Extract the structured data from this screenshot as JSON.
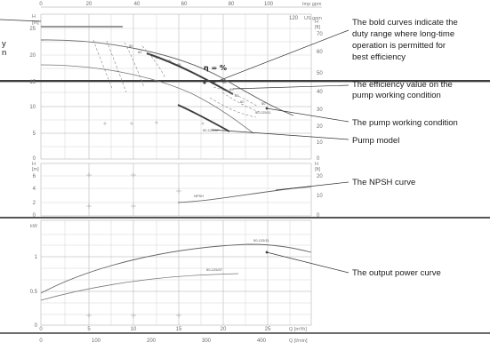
{
  "top_axis": {
    "ticks": [
      "0",
      "20",
      "40",
      "60",
      "80",
      "100",
      "120"
    ],
    "unit": "US gpm",
    "unit2": "Imp gpm"
  },
  "head_panel": {
    "unit_left": "H\n[m]",
    "unit_right": "H\n[ft]",
    "left_ticks": [
      "25",
      "20",
      "15",
      "10",
      "5",
      "0"
    ],
    "right_ticks": [
      "70",
      "60",
      "50",
      "40",
      "30",
      "20",
      "10",
      "0"
    ],
    "curve_labels": {
      "efficiency_1": "50",
      "efficiency_2": "60",
      "efficiency_3": "63",
      "efficiency_4": "65",
      "efficiency_5": "66",
      "eff_point": "66",
      "right_1": "65",
      "right_2": "63",
      "right_3": "60",
      "right_4": "50",
      "model_right": "50-125/11",
      "model_bottom": "50-125/07"
    },
    "eta_symbol": "η = %"
  },
  "npsh_panel": {
    "unit_left": "H\n[m]",
    "unit_right": "H\n[ft]",
    "left_ticks": [
      "6",
      "4",
      "2",
      "0"
    ],
    "right_ticks": [
      "20",
      "10",
      "0"
    ],
    "label": "NPSH"
  },
  "power_panel": {
    "unit": "kW",
    "ticks": [
      "1",
      "0.5",
      "0"
    ],
    "label_upper": "50-125/11",
    "label_lower": "50-125/07"
  },
  "bottom_axis": {
    "q_ticks": [
      "0",
      "5",
      "10",
      "15",
      "20",
      "25"
    ],
    "q_unit": "Q [m³/h]",
    "lmin_ticks": [
      "100",
      "200",
      "300",
      "400"
    ],
    "lmin_unit": "Q [l/min]"
  },
  "annotations": {
    "bold_curves": "The bold curves indicate the duty range where long-time operation is permitted for best efficiency",
    "efficiency_value": "The efficiency value on the pump working condition",
    "working_condition": "The pump working condition",
    "pump_model": "Pump model",
    "npsh_curve": "The NPSH curve",
    "output_power": "The output power curve",
    "left_cut_1": "y",
    "left_cut_2": "n"
  },
  "colors": {
    "grid": "#c8c8c8",
    "curve": "#666666",
    "band": "#3d3d3d",
    "text": "#1a1a1a"
  }
}
